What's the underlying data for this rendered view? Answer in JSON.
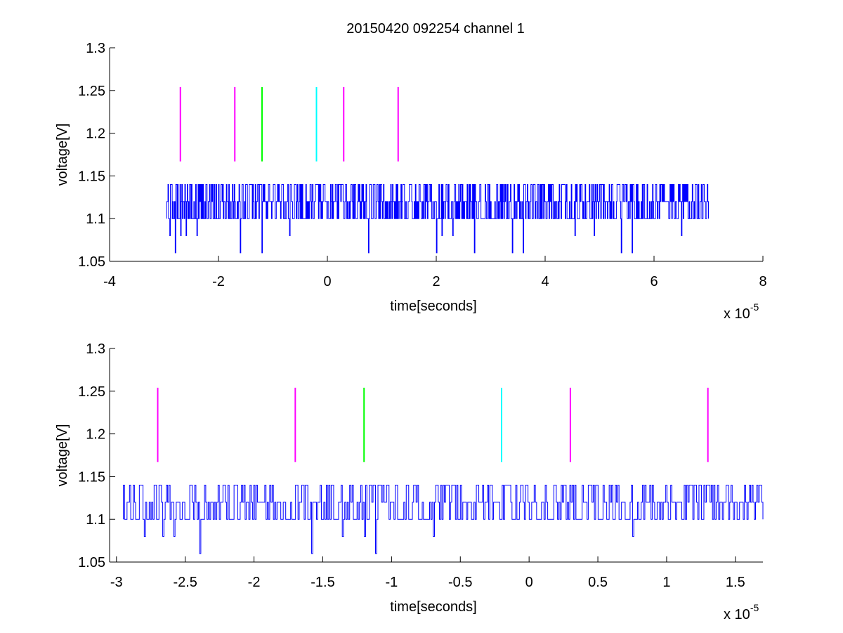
{
  "figure": {
    "title": "20150420 092254 channel 1"
  },
  "chart_data": [
    {
      "type": "line",
      "title": "20150420 092254 channel 1",
      "xlabel": "time[seconds]",
      "ylabel": "voltage[V]",
      "x_exponent_label": "x 10",
      "x_exponent": "-5",
      "x_scale": 1e-05,
      "xlim": [
        -4,
        8
      ],
      "ylim": [
        1.05,
        1.3
      ],
      "xticks": [
        -4,
        -2,
        0,
        2,
        4,
        6,
        8
      ],
      "xtick_labels": [
        "-4",
        "-2",
        "0",
        "2",
        "4",
        "6",
        "8"
      ],
      "yticks": [
        1.05,
        1.1,
        1.15,
        1.2,
        1.25,
        1.3
      ],
      "ytick_labels": [
        "1.05",
        "1.1",
        "1.15",
        "1.2",
        "1.25",
        "1.3"
      ],
      "grid": false,
      "signal": {
        "color": "#0000ff",
        "x_range": [
          -2.95,
          7.0
        ],
        "baseline": 1.1,
        "high_levels": [
          1.12,
          1.14
        ],
        "low_levels": [
          1.08,
          1.06
        ],
        "dips": [
          -2.9,
          -2.8,
          -2.7,
          -2.6,
          -2.4,
          -1.6,
          -1.2,
          -0.7,
          0.75,
          2.0,
          2.1,
          2.3,
          2.7,
          3.4,
          3.6,
          4.55,
          4.9,
          5.4,
          5.6,
          6.5
        ]
      },
      "markers": [
        {
          "x": -2.7,
          "y_range": [
            1.167,
            1.254
          ],
          "color": "#ff00ff"
        },
        {
          "x": -1.7,
          "y_range": [
            1.167,
            1.254
          ],
          "color": "#ff00ff"
        },
        {
          "x": -1.2,
          "y_range": [
            1.167,
            1.254
          ],
          "color": "#00ff00"
        },
        {
          "x": -0.2,
          "y_range": [
            1.167,
            1.254
          ],
          "color": "#00ffff"
        },
        {
          "x": 0.3,
          "y_range": [
            1.167,
            1.254
          ],
          "color": "#ff00ff"
        },
        {
          "x": 1.3,
          "y_range": [
            1.167,
            1.254
          ],
          "color": "#ff00ff"
        }
      ]
    },
    {
      "type": "line",
      "title": "",
      "xlabel": "time[seconds]",
      "ylabel": "voltage[V]",
      "x_exponent_label": "x 10",
      "x_exponent": "-5",
      "x_scale": 1e-05,
      "xlim": [
        -3.05,
        1.7
      ],
      "ylim": [
        1.05,
        1.3
      ],
      "xticks": [
        -3,
        -2.5,
        -2,
        -1.5,
        -1,
        -0.5,
        0,
        0.5,
        1,
        1.5
      ],
      "xtick_labels": [
        "-3",
        "-2.5",
        "-2",
        "-1.5",
        "-1",
        "-0.5",
        "0",
        "0.5",
        "1",
        "1.5"
      ],
      "yticks": [
        1.05,
        1.1,
        1.15,
        1.2,
        1.25,
        1.3
      ],
      "ytick_labels": [
        "1.05",
        "1.1",
        "1.15",
        "1.2",
        "1.25",
        "1.3"
      ],
      "grid": false,
      "signal": {
        "color": "#0000ff",
        "x_range": [
          -2.95,
          1.7
        ],
        "baseline": 1.1,
        "high_levels": [
          1.12,
          1.14
        ],
        "low_levels": [
          1.08,
          1.06
        ],
        "dips": [
          -2.8,
          -2.66,
          -2.58,
          -2.4,
          -1.58,
          -1.36,
          -1.2,
          -1.12,
          -0.7,
          0.75
        ]
      },
      "markers": [
        {
          "x": -2.7,
          "y_range": [
            1.167,
            1.254
          ],
          "color": "#ff00ff"
        },
        {
          "x": -1.7,
          "y_range": [
            1.167,
            1.254
          ],
          "color": "#ff00ff"
        },
        {
          "x": -1.2,
          "y_range": [
            1.167,
            1.254
          ],
          "color": "#00ff00"
        },
        {
          "x": -0.2,
          "y_range": [
            1.167,
            1.254
          ],
          "color": "#00ffff"
        },
        {
          "x": 0.3,
          "y_range": [
            1.167,
            1.254
          ],
          "color": "#ff00ff"
        },
        {
          "x": 1.3,
          "y_range": [
            1.167,
            1.254
          ],
          "color": "#ff00ff"
        }
      ]
    }
  ]
}
